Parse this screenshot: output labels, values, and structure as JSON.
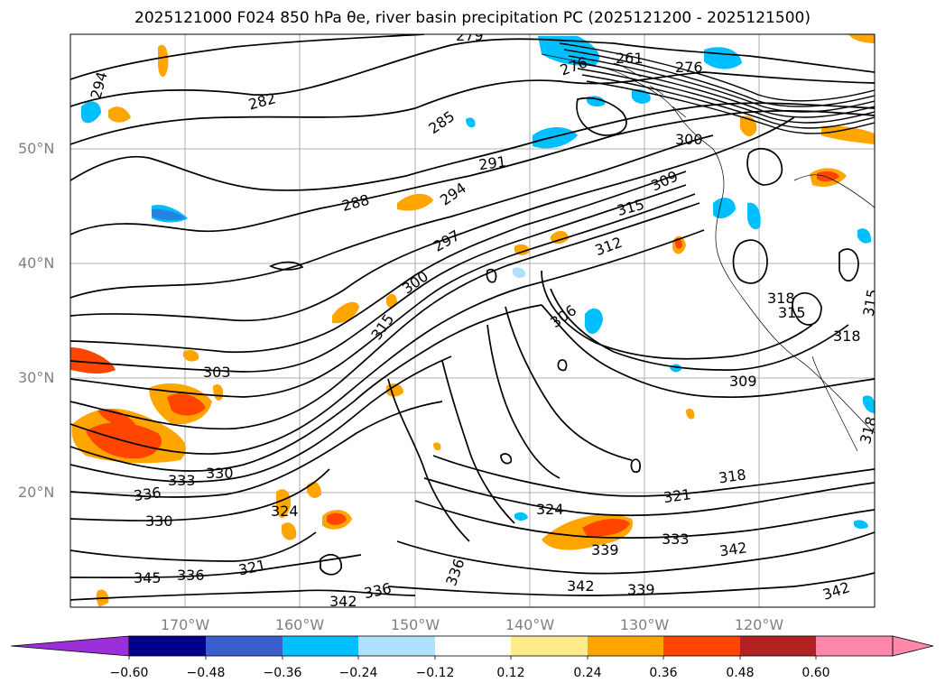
{
  "title": "2025121000 F024 850 hPa θe, river basin precipitation PC (2025121200 - 2025121500)",
  "map": {
    "lat_labels": [
      "50°N",
      "40°N",
      "30°N",
      "20°N"
    ],
    "lon_labels": [
      "170°W",
      "160°W",
      "150°W",
      "140°W",
      "130°W",
      "120°W"
    ],
    "contour_labels": [
      "279",
      "282",
      "285",
      "288",
      "291",
      "294",
      "297",
      "300",
      "303",
      "306",
      "309",
      "312",
      "315",
      "318",
      "321",
      "324",
      "330",
      "333",
      "336",
      "339",
      "342",
      "345"
    ],
    "labels_shown": {
      "l279": "279",
      "l294a": "294",
      "l294b": "294",
      "l282": "282",
      "l285": "285",
      "l288": "288",
      "l291": "291",
      "l297": "297",
      "l300a": "300",
      "l300b": "300",
      "l303": "303",
      "l306": "306",
      "l309a": "309",
      "l309b": "309",
      "l312": "312",
      "l315a": "315",
      "l315b": "315",
      "l318a": "318",
      "l318b": "318",
      "l318c": "318",
      "l321a": "321",
      "l321b": "321",
      "l324a": "324",
      "l324b": "324",
      "l330a": "330",
      "l330b": "330",
      "l333a": "333",
      "l333b": "333",
      "l336a": "336",
      "l336b": "336",
      "l339a": "339",
      "l339b": "339",
      "l342a": "342",
      "l342b": "342",
      "l342c": "342",
      "l345": "345",
      "l336c": "336",
      "l321c": "321",
      "l276": "276",
      "l261": "261"
    }
  },
  "colorbar": {
    "ticks": [
      "−0.60",
      "−0.48",
      "−0.36",
      "−0.24",
      "−0.12",
      "0.12",
      "0.24",
      "0.36",
      "0.48",
      "0.60"
    ],
    "colors": [
      "#9b30d9",
      "#00008b",
      "#3a5fcd",
      "#00bfff",
      "#b0e2ff",
      "#ffffff",
      "#ffec8b",
      "#ffa500",
      "#ff4500",
      "#b22222",
      "#ff88aa"
    ],
    "extend": "both"
  }
}
